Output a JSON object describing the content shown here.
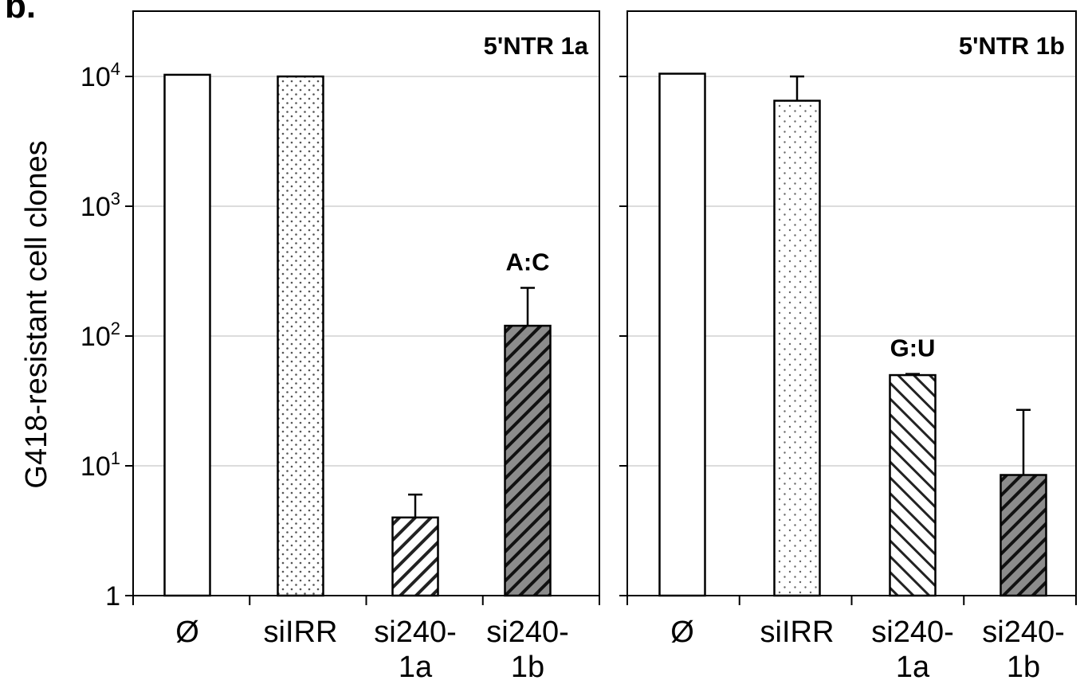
{
  "figure": {
    "corner_label": "b.",
    "ylabel": "G418-resistant cell clones"
  },
  "chart_data": {
    "type": "bar",
    "yscale": "log",
    "ylim": [
      1,
      30000
    ],
    "yticks": [
      {
        "value": 1,
        "base": "1",
        "exp": ""
      },
      {
        "value": 10,
        "base": "10",
        "exp": "1"
      },
      {
        "value": 100,
        "base": "10",
        "exp": "2"
      },
      {
        "value": 1000,
        "base": "10",
        "exp": "3"
      },
      {
        "value": 10000,
        "base": "10",
        "exp": "4"
      }
    ],
    "grid": true,
    "panels": [
      {
        "title": "5'NTR 1a",
        "categories": [
          {
            "line1": "Ø",
            "line2": ""
          },
          {
            "line1": "siIRR",
            "line2": ""
          },
          {
            "line1": "si240-",
            "line2": "1a"
          },
          {
            "line1": "si240-",
            "line2": "1b"
          }
        ],
        "values": [
          10300,
          10000,
          4,
          120
        ],
        "error_upper": [
          null,
          null,
          6,
          235
        ],
        "patterns": [
          "plain",
          "dots",
          "hatch-light",
          "hatch-dark"
        ],
        "annotations": [
          {
            "index": 3,
            "text": "A:C"
          }
        ]
      },
      {
        "title": "5'NTR 1b",
        "categories": [
          {
            "line1": "Ø",
            "line2": ""
          },
          {
            "line1": "siIRR",
            "line2": ""
          },
          {
            "line1": "si240-",
            "line2": "1a"
          },
          {
            "line1": "si240-",
            "line2": "1b"
          }
        ],
        "values": [
          10500,
          6500,
          50,
          8.5
        ],
        "error_upper": [
          null,
          10000,
          51,
          27
        ],
        "patterns": [
          "plain",
          "dots-sparse",
          "hatch-light-back",
          "hatch-dark"
        ],
        "annotations": [
          {
            "index": 2,
            "text": "G:U"
          }
        ]
      }
    ]
  }
}
